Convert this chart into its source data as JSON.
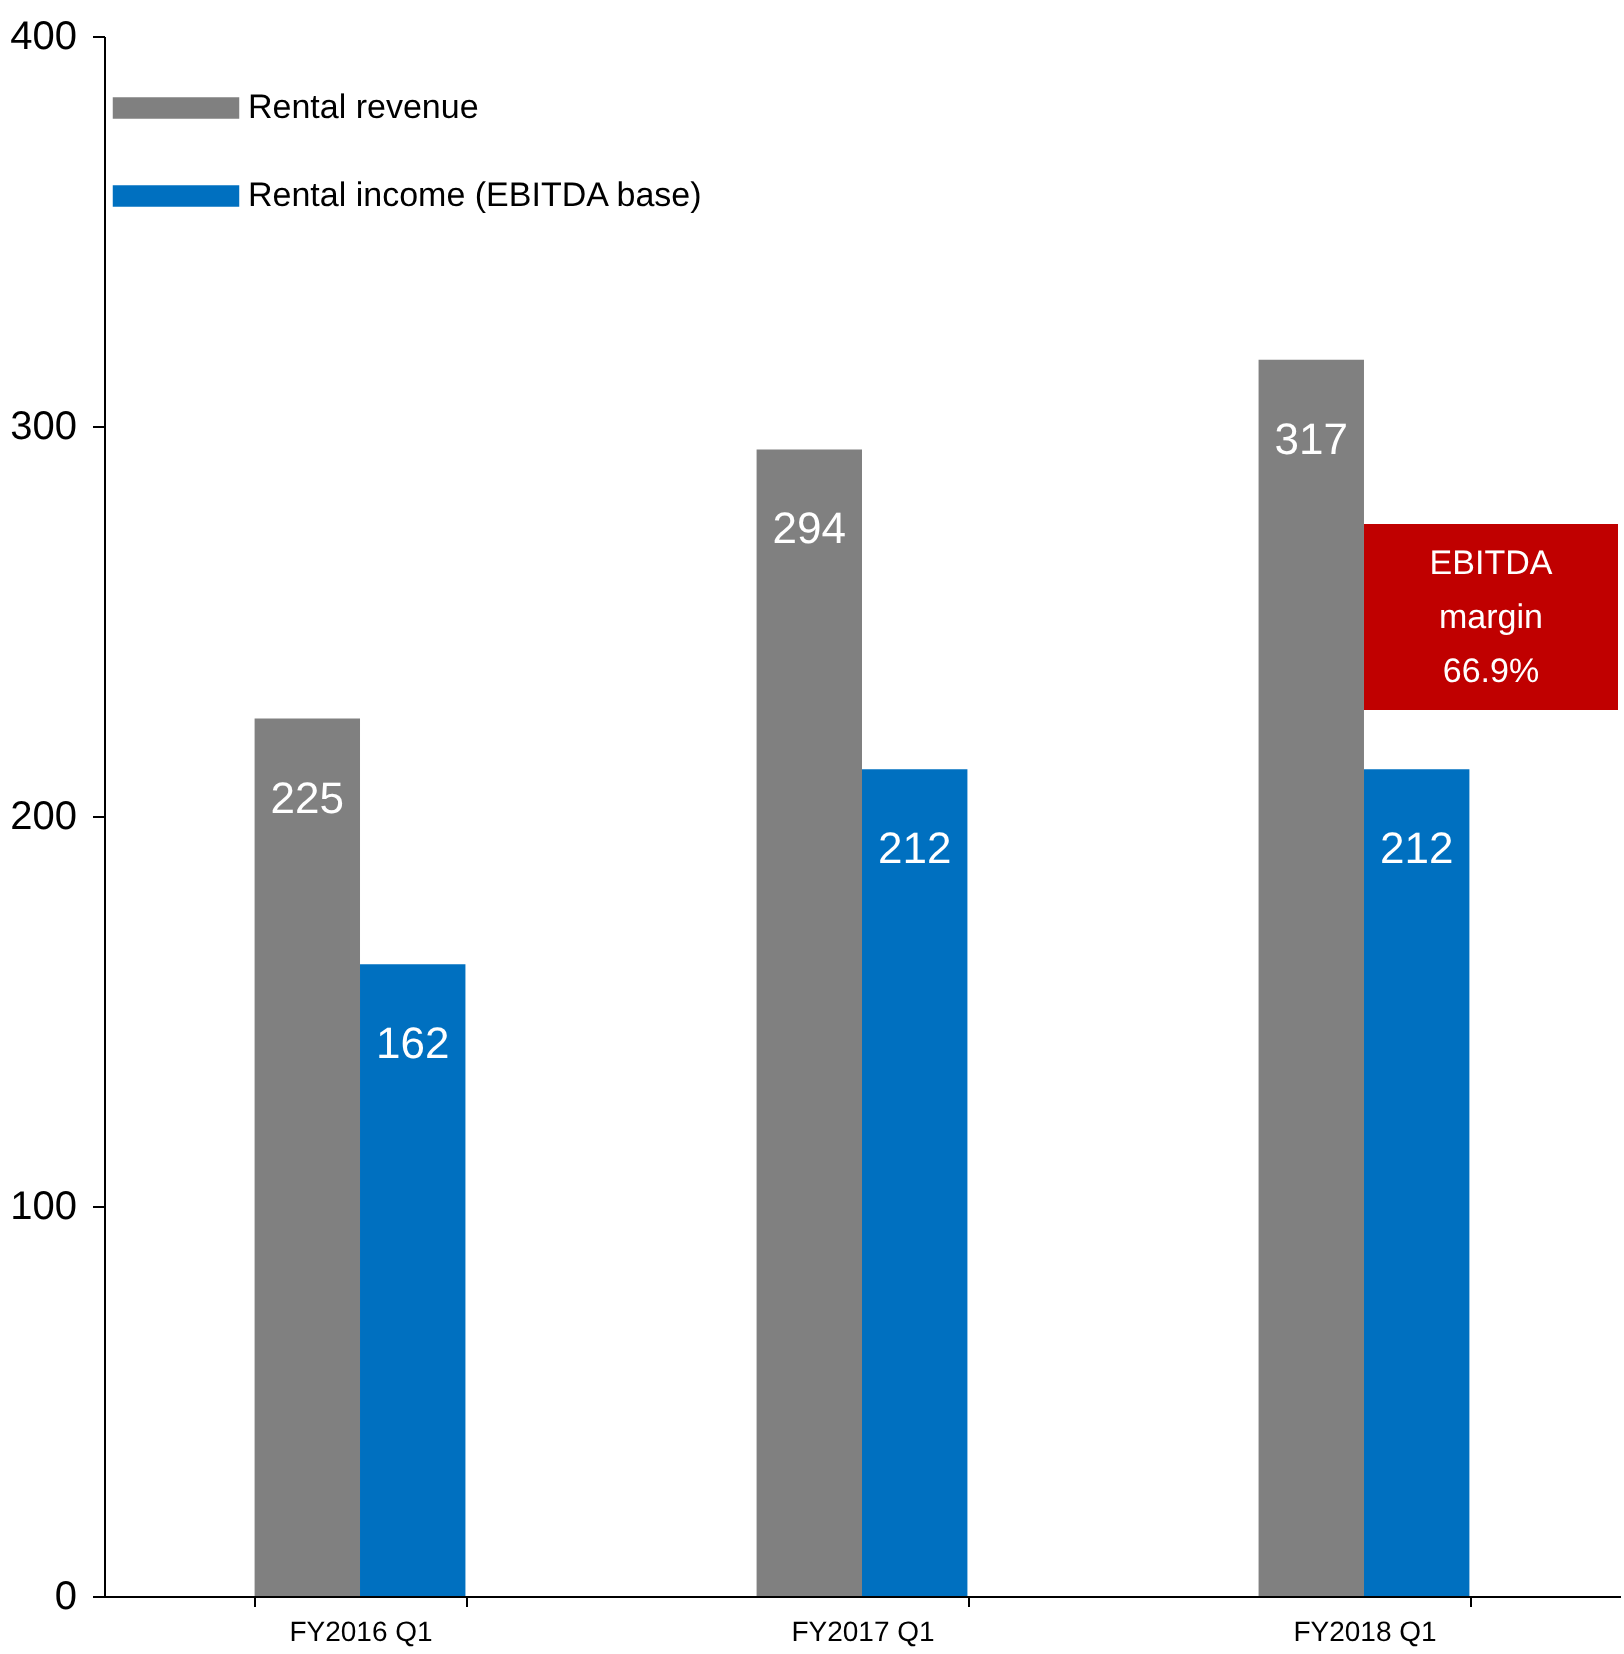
{
  "chart_data": {
    "type": "bar",
    "categories": [
      "FY2016 Q1",
      "FY2017 Q1",
      "FY2018 Q1"
    ],
    "series": [
      {
        "name": "Rental revenue",
        "color": "#808080",
        "values": [
          225,
          294,
          317
        ]
      },
      {
        "name": "Rental income (EBITDA base)",
        "color": "#0070c0",
        "values": [
          162,
          212,
          212
        ]
      }
    ],
    "ylim": [
      0,
      400
    ],
    "yticks": [
      0,
      100,
      200,
      300,
      400
    ],
    "grid": false,
    "legend": "top left",
    "data_labels": true,
    "annotations": [
      "EBITDA margin 66.9%"
    ]
  }
}
